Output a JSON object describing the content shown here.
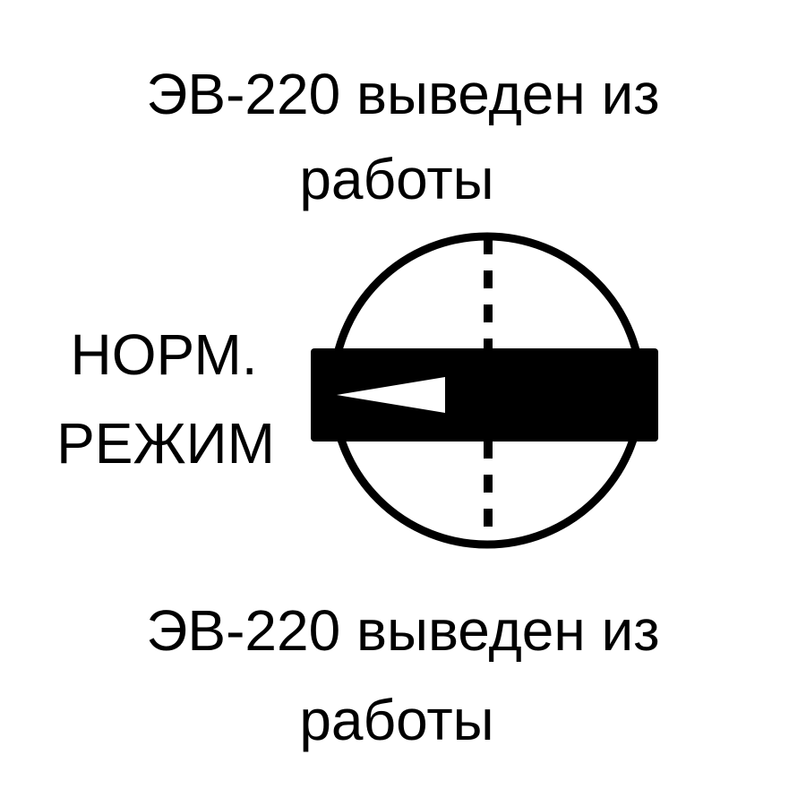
{
  "labels": {
    "top_line1": "ЭВ-220 выведен из",
    "top_line2": "работы",
    "left_line1": "НОРМ.",
    "left_line2": "РЕЖИМ",
    "bottom_line1": "ЭВ-220 выведен из",
    "bottom_line2": "работы"
  },
  "colors": {
    "ink": "#000000",
    "background": "#ffffff"
  },
  "icons": {
    "switch": "rotary-switch-icon",
    "pointer": "pointer-arrow-icon"
  }
}
